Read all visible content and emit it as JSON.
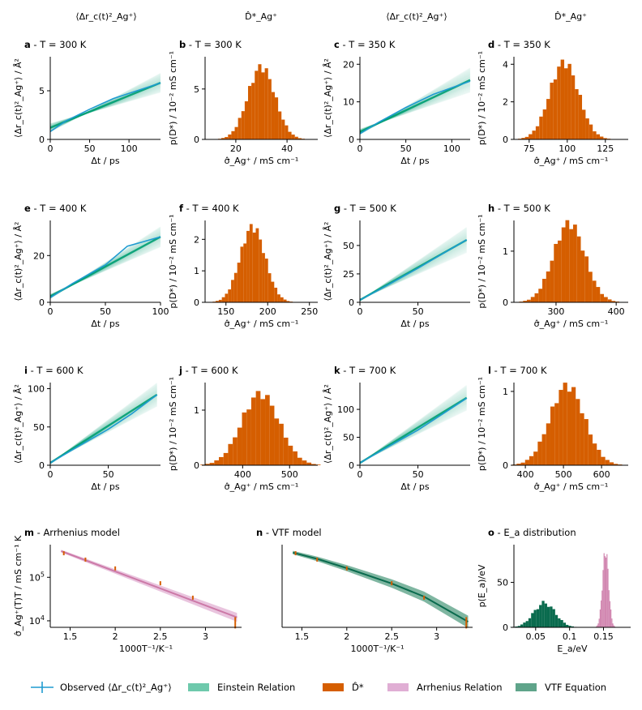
{
  "column_headers": [
    "⟨Δr_c(t)²_Ag⁺⟩",
    "D̂*_Ag⁺",
    "⟨Δr_c(t)²_Ag⁺⟩",
    "D̂*_Ag⁺"
  ],
  "colors": {
    "observed": "#1f9bd1",
    "einstein": "#009e73",
    "einstein_light": "#7fd0b8",
    "hist": "#d55e00",
    "arrhenius": "#cc79a7",
    "arrhenius_light": "#e4b5d6",
    "vtf": "#0a6b4e",
    "vtf_light": "#5fa48a"
  },
  "chart_data": [
    {
      "type": "line",
      "panel": "a",
      "title": "a - T = 300 K",
      "xlabel": "Δt / ps",
      "ylabel": "⟨Δr_c(t)²_Ag⁺⟩ / Å²",
      "xlim": [
        0,
        140
      ],
      "ylim": [
        0,
        8.5
      ],
      "xticks": [
        0,
        50,
        100
      ],
      "yticks": [
        0,
        5
      ],
      "observed": {
        "x": [
          0,
          20,
          50,
          80,
          110,
          140
        ],
        "y": [
          0.8,
          1.9,
          3.1,
          4.2,
          5.0,
          5.8
        ]
      },
      "fit": {
        "intercept": 1.2,
        "slope": 0.033,
        "spread": 0.3
      }
    },
    {
      "type": "bar",
      "panel": "b",
      "title": "b - T = 300 K",
      "xlabel": "σ̂_Ag⁺ / mS cm⁻¹",
      "ylabel": "p(D*) / 10⁻² mS cm⁻¹",
      "xlim": [
        8,
        52
      ],
      "ylim": [
        0,
        8.2
      ],
      "xticks": [
        20,
        40
      ],
      "yticks": [
        0,
        5
      ],
      "mean": 30,
      "sd": 5.3,
      "peak": 7.2
    },
    {
      "type": "line",
      "panel": "c",
      "title": "c - T = 350 K",
      "xlabel": "Δt / ps",
      "ylabel": "⟨Δr_c(t)²_Ag⁺⟩ / Å²",
      "xlim": [
        0,
        120
      ],
      "ylim": [
        0,
        22
      ],
      "xticks": [
        0,
        50,
        100
      ],
      "yticks": [
        0,
        10,
        20
      ],
      "observed": {
        "x": [
          0,
          20,
          50,
          80,
          120
        ],
        "y": [
          1.5,
          4.5,
          8.5,
          12.0,
          15.5
        ]
      },
      "fit": {
        "intercept": 2.0,
        "slope": 0.115,
        "spread": 0.28
      }
    },
    {
      "type": "bar",
      "panel": "d",
      "title": "d - T = 350 K",
      "xlabel": "σ̂_Ag⁺ / mS cm⁻¹",
      "ylabel": "p(D*) / 10⁻² mS cm⁻¹",
      "xlim": [
        65,
        140
      ],
      "ylim": [
        0,
        4.4
      ],
      "xticks": [
        75,
        100,
        125
      ],
      "yticks": [
        0,
        2,
        4
      ],
      "mean": 98,
      "sd": 9.5,
      "peak": 4.1
    },
    {
      "type": "line",
      "panel": "e",
      "title": "e - T = 400 K",
      "xlabel": "Δt / ps",
      "ylabel": "⟨Δr_c(t)²_Ag⁺⟩ / Å²",
      "xlim": [
        0,
        100
      ],
      "ylim": [
        0,
        35
      ],
      "xticks": [
        0,
        50,
        100
      ],
      "yticks": [
        0,
        20
      ],
      "observed": {
        "x": [
          0,
          20,
          50,
          70,
          85,
          100
        ],
        "y": [
          2.0,
          8.0,
          16.0,
          24.0,
          26.0,
          28.0
        ]
      },
      "fit": {
        "intercept": 2.5,
        "slope": 0.255,
        "spread": 0.2
      }
    },
    {
      "type": "bar",
      "panel": "f",
      "title": "f - T = 400 K",
      "xlabel": "σ̂_Ag⁺ / mS cm⁻¹",
      "ylabel": "p(D*) / 10⁻² mS cm⁻¹",
      "xlim": [
        125,
        260
      ],
      "ylim": [
        0,
        2.6
      ],
      "xticks": [
        150,
        200,
        250
      ],
      "yticks": [
        0,
        1,
        2
      ],
      "mean": 182,
      "sd": 15,
      "peak": 2.4
    },
    {
      "type": "line",
      "panel": "g",
      "title": "g - T = 500 K",
      "xlabel": "Δt / ps",
      "ylabel": "⟨Δr_c(t)²_Ag⁺⟩ / Å²",
      "xlim": [
        0,
        95
      ],
      "ylim": [
        0,
        72
      ],
      "xticks": [
        0,
        50
      ],
      "yticks": [
        0,
        25,
        50
      ],
      "observed": {
        "x": [
          0,
          20,
          50,
          70,
          92
        ],
        "y": [
          2.0,
          13.0,
          30.0,
          42.0,
          55.0
        ]
      },
      "fit": {
        "intercept": 2.0,
        "slope": 0.575,
        "spread": 0.22
      }
    },
    {
      "type": "bar",
      "panel": "h",
      "title": "h - T = 500 K",
      "xlabel": "σ̂_Ag⁺ / mS cm⁻¹",
      "ylabel": "p(D*) / 10⁻² mS cm⁻¹",
      "xlim": [
        230,
        420
      ],
      "ylim": [
        0,
        1.6
      ],
      "xticks": [
        300,
        400
      ],
      "yticks": [
        0,
        1
      ],
      "mean": 322,
      "sd": 26,
      "peak": 1.55
    },
    {
      "type": "line",
      "panel": "i",
      "title": "i - T = 600 K",
      "xlabel": "Δt / ps",
      "ylabel": "⟨Δr_c(t)²_Ag⁺⟩ / Å²",
      "xlim": [
        0,
        95
      ],
      "ylim": [
        0,
        108
      ],
      "xticks": [
        0,
        50
      ],
      "yticks": [
        0,
        50,
        100
      ],
      "observed": {
        "x": [
          0,
          20,
          50,
          70,
          92
        ],
        "y": [
          3.0,
          21.0,
          47.0,
          67.0,
          92.0
        ]
      },
      "fit": {
        "intercept": 3.0,
        "slope": 0.97,
        "spread": 0.18
      }
    },
    {
      "type": "bar",
      "panel": "j",
      "title": "j - T = 600 K",
      "xlabel": "σ̂_Ag⁺ / mS cm⁻¹",
      "ylabel": "p(D*) / 10⁻² mS cm⁻¹",
      "xlim": [
        320,
        560
      ],
      "ylim": [
        0,
        1.5
      ],
      "xticks": [
        400,
        500
      ],
      "yticks": [
        0,
        1
      ],
      "mean": 438,
      "sd": 40,
      "peak": 1.3
    },
    {
      "type": "line",
      "panel": "k",
      "title": "k - T = 700 K",
      "xlabel": "Δt / ps",
      "ylabel": "⟨Δr_c(t)²_Ag⁺⟩ / Å²",
      "xlim": [
        0,
        95
      ],
      "ylim": [
        0,
        148
      ],
      "xticks": [
        0,
        50
      ],
      "yticks": [
        0,
        50,
        100
      ],
      "observed": {
        "x": [
          0,
          20,
          50,
          70,
          92
        ],
        "y": [
          4.0,
          28.0,
          63.0,
          90.0,
          120.0
        ]
      },
      "fit": {
        "intercept": 4.0,
        "slope": 1.27,
        "spread": 0.2
      }
    },
    {
      "type": "bar",
      "panel": "l",
      "title": "l - T = 700 K",
      "xlabel": "σ̂_Ag⁺ / mS cm⁻¹",
      "ylabel": "p(D*) / 10⁻² mS cm⁻¹",
      "xlim": [
        370,
        670
      ],
      "ylim": [
        0,
        1.12
      ],
      "xticks": [
        400,
        500,
        600
      ],
      "yticks": [
        0,
        1
      ],
      "mean": 510,
      "sd": 45,
      "peak": 1.08
    },
    {
      "type": "scatter",
      "panel": "m",
      "title": "m - Arrhenius model",
      "xlabel": "1000T⁻¹/K⁻¹",
      "ylabel": "σ̂_Ag⁺(T)T / mS cm⁻¹ K",
      "xlim": [
        1.28,
        3.4
      ],
      "ylim_log10": [
        3.85,
        5.75
      ],
      "xticks": [
        1.5,
        2.0,
        2.5,
        3.0
      ],
      "yticks_log10": [
        4,
        5
      ],
      "points": {
        "x": [
          1.43,
          1.67,
          2.0,
          2.5,
          2.86,
          3.33
        ],
        "y": [
          357000,
          255000,
          160000,
          73000,
          34000,
          9000
        ]
      },
      "fit": {
        "x": [
          1.4,
          3.35
        ],
        "y": [
          400000,
          12000
        ]
      }
    },
    {
      "type": "scatter",
      "panel": "n",
      "title": "n - VTF model",
      "xlabel": "1000T⁻¹/K⁻¹",
      "ylabel": "",
      "xlim": [
        1.28,
        3.4
      ],
      "ylim_log10": [
        3.85,
        5.75
      ],
      "xticks": [
        1.5,
        2.0,
        2.5,
        3.0
      ],
      "yticks_log10": [],
      "points": {
        "x": [
          1.43,
          1.67,
          2.0,
          2.5,
          2.86,
          3.33
        ],
        "y": [
          357000,
          255000,
          160000,
          73000,
          34000,
          9000
        ]
      },
      "fit": {
        "x": [
          1.4,
          1.67,
          2.0,
          2.5,
          2.86,
          3.35
        ],
        "y": [
          370000,
          265000,
          162000,
          72000,
          36000,
          9500
        ]
      }
    },
    {
      "type": "bar",
      "panel": "o",
      "title": "o - E_a distribution",
      "xlabel": "E_a/eV",
      "ylabel": "p(E_a)/eV",
      "xlim": [
        0.018,
        0.19
      ],
      "ylim": [
        0,
        92
      ],
      "xticks": [
        0.05,
        0.1,
        0.15
      ],
      "yticks": [
        0,
        50
      ],
      "series": [
        {
          "name": "VTF",
          "mean": 0.063,
          "sd": 0.016,
          "peak": 27
        },
        {
          "name": "Arrhenius",
          "mean": 0.153,
          "sd": 0.0045,
          "peak": 85
        }
      ]
    }
  ],
  "legend": [
    {
      "label": "Observed ⟨Δr_c(t)²_Ag⁺⟩",
      "kind": "errorline",
      "color": "#1f9bd1"
    },
    {
      "label": "Einstein Relation",
      "kind": "patch",
      "color": "#6ec9ac"
    },
    {
      "label": "D̂*",
      "kind": "patch",
      "color": "#d55e00"
    },
    {
      "label": "Arrhenius Relation",
      "kind": "patch",
      "color": "#e0aed4"
    },
    {
      "label": "VTF Equation",
      "kind": "patch",
      "color": "#5fa48a"
    }
  ]
}
